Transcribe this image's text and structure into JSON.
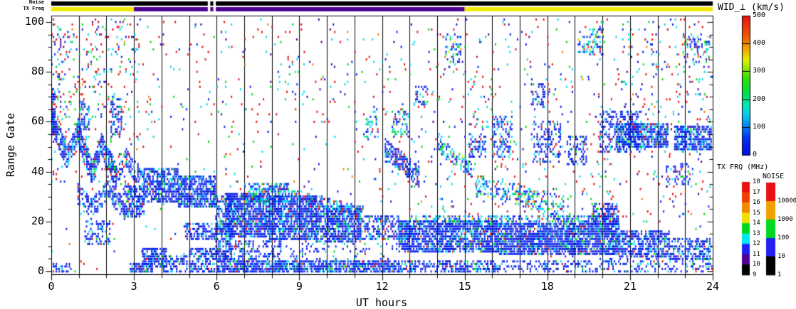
{
  "header": {
    "noise_bar_label": "Noise",
    "tx_freq_bar_label": "TX Freq",
    "bars": {
      "noise_color": "#000000",
      "tx_segments": [
        {
          "h0": 0,
          "h1": 3,
          "color": "#f0e800"
        },
        {
          "h0": 3,
          "h1": 15,
          "color": "#500090"
        },
        {
          "h0": 15,
          "h1": 24,
          "color": "#f0e800"
        }
      ],
      "gap": {
        "h0": 5.68,
        "h1": 5.97,
        "block_h0": 5.77,
        "block_h1": 5.88
      }
    }
  },
  "axes": {
    "x_label": "UT hours",
    "y_label": "Range Gate",
    "x_ticks": [
      0,
      3,
      6,
      9,
      12,
      15,
      18,
      21,
      24
    ],
    "y_ticks": [
      0,
      20,
      40,
      60,
      80,
      100
    ],
    "x_range": [
      0,
      24
    ],
    "y_range": [
      0,
      100
    ],
    "x_minor_every": 1,
    "y_minor_every": 5,
    "grid_every_hour": 1
  },
  "colorbars": {
    "wid": {
      "title": "WID_⊥ (km/s)",
      "tick_labels_top_to_bottom": [
        "500",
        "400",
        "300",
        "200",
        "100",
        "0"
      ],
      "min": 0,
      "max": 500,
      "gradient_bottom_to_top": [
        [
          0.0,
          "#0010e0"
        ],
        [
          0.12,
          "#0030f0"
        ],
        [
          0.2,
          "#0080f8"
        ],
        [
          0.28,
          "#00c8f0"
        ],
        [
          0.35,
          "#00e8c0"
        ],
        [
          0.45,
          "#00e040"
        ],
        [
          0.55,
          "#30e000"
        ],
        [
          0.62,
          "#90e800"
        ],
        [
          0.68,
          "#e0f000"
        ],
        [
          0.75,
          "#f0b000"
        ],
        [
          0.85,
          "#f05800"
        ],
        [
          1.0,
          "#e81010"
        ]
      ]
    },
    "tx": {
      "title": "TX FRQ (MHz)",
      "tick_labels_top_to_bottom": [
        "18",
        "17",
        "16",
        "15",
        "14",
        "13",
        "12",
        "11",
        "10",
        "9"
      ],
      "blocks_top_to_bottom": [
        "#e81010",
        "#f04000",
        "#f08800",
        "#f0e000",
        "#00d820",
        "#00e8f0",
        "#2020f0",
        "#500090",
        "#000000"
      ]
    },
    "noise": {
      "title": "NOISE",
      "tick_labels_top_to_bottom": [
        "10000",
        "1000",
        "100",
        "10",
        "1"
      ],
      "blocks_top_to_bottom": [
        "#e81010",
        "#f0a000",
        "#00d820",
        "#2020f0",
        "#000000"
      ]
    }
  },
  "chart_data": {
    "type": "heatmap",
    "title": "",
    "xlabel": "UT hours",
    "ylabel": "Range Gate",
    "xlim": [
      0,
      24
    ],
    "ylim": [
      0,
      100
    ],
    "value_scale": {
      "label": "WID_⊥ (km/s)",
      "min": 0,
      "max": 500
    },
    "seed": 42,
    "palettes": {
      "B": {
        "colors": [
          "#0820ee",
          "#0010b0",
          "#00d8f0",
          "#00d820",
          "#e81010"
        ],
        "weights": [
          0.72,
          0.1,
          0.12,
          0.04,
          0.02
        ]
      },
      "BC": {
        "colors": [
          "#0820ee",
          "#00d8f0",
          "#00d820",
          "#e81010",
          "#d8e800"
        ],
        "weights": [
          0.45,
          0.3,
          0.15,
          0.06,
          0.04
        ]
      },
      "N": {
        "colors": [
          "#e81010",
          "#00d8f0",
          "#0820ee",
          "#00d820",
          "#500090",
          "#f08000"
        ],
        "weights": [
          0.3,
          0.24,
          0.26,
          0.13,
          0.04,
          0.03
        ]
      }
    },
    "clusters": [
      {
        "t": "p",
        "h0": 0.0,
        "h1": 0.14,
        "g0": 55,
        "g1": 72,
        "d": 0.8,
        "p": "B"
      },
      {
        "t": "d",
        "h0": 0.0,
        "h1": 0.55,
        "gA": 61,
        "gB": 46,
        "w": 5,
        "d": 0.75,
        "p": "B"
      },
      {
        "t": "d",
        "h0": 0.55,
        "h1": 0.95,
        "gA": 46,
        "gB": 56,
        "w": 4,
        "d": 0.7,
        "p": "B"
      },
      {
        "t": "d",
        "h0": 0.95,
        "h1": 1.45,
        "gA": 56,
        "gB": 40,
        "w": 5,
        "d": 0.75,
        "p": "B"
      },
      {
        "t": "d",
        "h0": 1.45,
        "h1": 1.8,
        "gA": 40,
        "gB": 51,
        "w": 4,
        "d": 0.7,
        "p": "B"
      },
      {
        "t": "d",
        "h0": 1.8,
        "h1": 2.35,
        "gA": 51,
        "gB": 38,
        "w": 5,
        "d": 0.7,
        "p": "B"
      },
      {
        "t": "d",
        "h0": 2.35,
        "h1": 2.7,
        "gA": 38,
        "gB": 46,
        "w": 3,
        "d": 0.6,
        "p": "B"
      },
      {
        "t": "d",
        "h0": 2.7,
        "h1": 3.35,
        "gA": 45,
        "gB": 36,
        "w": 4,
        "d": 0.6,
        "p": "B"
      },
      {
        "t": "p",
        "h0": 1.02,
        "h1": 1.35,
        "g0": 57,
        "g1": 68,
        "d": 0.45,
        "p": "B"
      },
      {
        "t": "p",
        "h0": 2.15,
        "h1": 2.55,
        "g0": 55,
        "g1": 70,
        "d": 0.45,
        "p": "B"
      },
      {
        "t": "d",
        "h0": 0.95,
        "h1": 1.45,
        "gA": 31,
        "gB": 25,
        "w": 4,
        "d": 0.5,
        "p": "B"
      },
      {
        "t": "d",
        "h0": 1.45,
        "h1": 2.05,
        "gA": 25,
        "gB": 33,
        "w": 4,
        "d": 0.5,
        "p": "B"
      },
      {
        "t": "d",
        "h0": 2.05,
        "h1": 2.65,
        "gA": 33,
        "gB": 25,
        "w": 4,
        "d": 0.5,
        "p": "B"
      },
      {
        "t": "p",
        "h0": 1.2,
        "h1": 2.1,
        "g0": 11,
        "g1": 20,
        "d": 0.4,
        "p": "B"
      },
      {
        "t": "p",
        "h0": 2.6,
        "h1": 3.35,
        "g0": 22,
        "g1": 34,
        "d": 0.65,
        "p": "B"
      },
      {
        "t": "p",
        "h0": 3.35,
        "h1": 4.6,
        "g0": 28,
        "g1": 41,
        "d": 0.7,
        "p": "B"
      },
      {
        "t": "p",
        "h0": 4.6,
        "h1": 5.95,
        "g0": 26,
        "g1": 38,
        "d": 0.75,
        "p": "B"
      },
      {
        "t": "p",
        "h0": 4.8,
        "h1": 6.2,
        "g0": 13,
        "g1": 19,
        "d": 0.5,
        "p": "B"
      },
      {
        "t": "p",
        "h0": 3.3,
        "h1": 4.15,
        "g0": 2,
        "g1": 9,
        "d": 0.8,
        "p": "B"
      },
      {
        "t": "p",
        "h0": 2.85,
        "h1": 3.65,
        "g0": 0,
        "g1": 3,
        "d": 0.85,
        "p": "B"
      },
      {
        "t": "p",
        "h0": 4.0,
        "h1": 4.9,
        "g0": 0,
        "g1": 6,
        "d": 0.5,
        "p": "B"
      },
      {
        "t": "p",
        "h0": 5.0,
        "h1": 6.3,
        "g0": 0,
        "g1": 9,
        "d": 0.55,
        "p": "B"
      },
      {
        "t": "p",
        "h0": 0.0,
        "h1": 0.7,
        "g0": 0,
        "g1": 3,
        "d": 0.4,
        "p": "B"
      },
      {
        "t": "p",
        "h0": 5.95,
        "h1": 6.55,
        "g0": 5,
        "g1": 30,
        "d": 0.6,
        "p": "B"
      },
      {
        "t": "p",
        "h0": 6.3,
        "h1": 7.9,
        "g0": 14,
        "g1": 31,
        "d": 0.8,
        "p": "B"
      },
      {
        "t": "p",
        "h0": 7.0,
        "h1": 8.6,
        "g0": 28,
        "g1": 35,
        "d": 0.55,
        "p": "BC"
      },
      {
        "t": "p",
        "h0": 7.9,
        "h1": 9.6,
        "g0": 13,
        "g1": 30,
        "d": 0.8,
        "p": "B"
      },
      {
        "t": "p",
        "h0": 9.6,
        "h1": 11.2,
        "g0": 12,
        "g1": 26,
        "d": 0.75,
        "p": "B"
      },
      {
        "t": "p",
        "h0": 11.2,
        "h1": 12.6,
        "g0": 13,
        "g1": 22,
        "d": 0.55,
        "p": "B"
      },
      {
        "t": "d",
        "h0": 8.6,
        "h1": 11.3,
        "gA": 31,
        "gB": 24,
        "w": 2,
        "d": 0.5,
        "p": "BC"
      },
      {
        "t": "p",
        "h0": 6.0,
        "h1": 12.6,
        "g0": 0,
        "g1": 4,
        "d": 0.8,
        "p": "B"
      },
      {
        "t": "p",
        "h0": 6.3,
        "h1": 8.3,
        "g0": 5,
        "g1": 12,
        "d": 0.45,
        "p": "B"
      },
      {
        "t": "p",
        "h0": 8.3,
        "h1": 12.6,
        "g0": 5,
        "g1": 11,
        "d": 0.12,
        "p": "B"
      },
      {
        "t": "p",
        "h0": 12.6,
        "h1": 16.2,
        "g0": 8,
        "g1": 20,
        "d": 0.8,
        "p": "B"
      },
      {
        "t": "p",
        "h0": 16.2,
        "h1": 20.6,
        "g0": 7,
        "g1": 19,
        "d": 0.85,
        "p": "B"
      },
      {
        "t": "d",
        "h0": 13.0,
        "h1": 20.5,
        "gA": 21,
        "gB": 21,
        "w": 1.5,
        "d": 0.5,
        "p": "BC"
      },
      {
        "t": "p",
        "h0": 12.6,
        "h1": 16.2,
        "g0": 0,
        "g1": 4,
        "d": 0.55,
        "p": "B"
      },
      {
        "t": "p",
        "h0": 16.2,
        "h1": 20.2,
        "g0": 0,
        "g1": 4,
        "d": 0.3,
        "p": "B"
      },
      {
        "t": "p",
        "h0": 20.2,
        "h1": 24,
        "g0": 0,
        "g1": 5,
        "d": 0.25,
        "p": "B"
      },
      {
        "t": "p",
        "h0": 19.6,
        "h1": 20.6,
        "g0": 19,
        "g1": 27,
        "d": 0.6,
        "p": "B"
      },
      {
        "t": "p",
        "h0": 20.6,
        "h1": 22.4,
        "g0": 6,
        "g1": 16,
        "d": 0.7,
        "p": "B"
      },
      {
        "t": "p",
        "h0": 22.4,
        "h1": 24,
        "g0": 5,
        "g1": 13,
        "d": 0.5,
        "p": "B"
      },
      {
        "t": "d",
        "h0": 12.1,
        "h1": 13.35,
        "gA": 50,
        "gB": 38,
        "w": 4,
        "d": 0.7,
        "p": "B"
      },
      {
        "t": "d",
        "h0": 14.0,
        "h1": 15.25,
        "gA": 51,
        "gB": 41,
        "w": 3,
        "d": 0.45,
        "p": "BC"
      },
      {
        "t": "p",
        "h0": 12.35,
        "h1": 12.95,
        "g0": 55,
        "g1": 65,
        "d": 0.35,
        "p": "BC"
      },
      {
        "t": "p",
        "h0": 11.35,
        "h1": 11.85,
        "g0": 54,
        "g1": 64,
        "d": 0.3,
        "p": "BC"
      },
      {
        "t": "d",
        "h0": 15.4,
        "h1": 18.6,
        "gA": 35,
        "gB": 26,
        "w": 4,
        "d": 0.4,
        "p": "BC"
      },
      {
        "t": "p",
        "h0": 15.15,
        "h1": 15.75,
        "g0": 46,
        "g1": 55,
        "d": 0.4,
        "p": "B"
      },
      {
        "t": "p",
        "h0": 16.0,
        "h1": 16.7,
        "g0": 46,
        "g1": 62,
        "d": 0.35,
        "p": "B"
      },
      {
        "t": "p",
        "h0": 17.5,
        "h1": 18.5,
        "g0": 44,
        "g1": 60,
        "d": 0.35,
        "p": "B"
      },
      {
        "t": "p",
        "h0": 18.7,
        "h1": 19.4,
        "g0": 43,
        "g1": 54,
        "d": 0.35,
        "p": "B"
      },
      {
        "t": "p",
        "h0": 19.9,
        "h1": 21.4,
        "g0": 48,
        "g1": 64,
        "d": 0.45,
        "p": "B"
      },
      {
        "t": "p",
        "h0": 20.5,
        "h1": 22.35,
        "g0": 50,
        "g1": 59,
        "d": 0.75,
        "p": "B"
      },
      {
        "t": "p",
        "h0": 22.6,
        "h1": 24,
        "g0": 49,
        "g1": 58,
        "d": 0.75,
        "p": "B"
      },
      {
        "t": "p",
        "h0": 22.3,
        "h1": 23.3,
        "g0": 35,
        "g1": 43,
        "d": 0.3,
        "p": "B"
      },
      {
        "t": "p",
        "h0": 13.15,
        "h1": 13.65,
        "g0": 67,
        "g1": 74,
        "d": 0.35,
        "p": "B"
      },
      {
        "t": "p",
        "h0": 14.3,
        "h1": 14.85,
        "g0": 84,
        "g1": 95,
        "d": 0.35,
        "p": "BC"
      },
      {
        "t": "p",
        "h0": 19.1,
        "h1": 20.0,
        "g0": 87,
        "g1": 97,
        "d": 0.25,
        "p": "BC"
      },
      {
        "t": "p",
        "h0": 22.9,
        "h1": 23.9,
        "g0": 84,
        "g1": 94,
        "d": 0.25,
        "p": "BC"
      },
      {
        "t": "p",
        "h0": 17.4,
        "h1": 17.9,
        "g0": 66,
        "g1": 75,
        "d": 0.3,
        "p": "B"
      },
      {
        "t": "p",
        "h0": 0.0,
        "h1": 3.2,
        "g0": 62,
        "g1": 102,
        "d": 0.1,
        "p": "N"
      },
      {
        "t": "p",
        "h0": 0.0,
        "h1": 0.35,
        "g0": 35,
        "g1": 102,
        "d": 0.12,
        "p": "N"
      },
      {
        "t": "p",
        "h0": 3.2,
        "h1": 24,
        "g0": 60,
        "g1": 102,
        "d": 0.018,
        "p": "N"
      },
      {
        "t": "p",
        "h0": 0,
        "h1": 24,
        "g0": 0,
        "g1": 102,
        "d": 0.01,
        "p": "N"
      },
      {
        "t": "p",
        "h0": 12.3,
        "h1": 24,
        "g0": 22,
        "g1": 60,
        "d": 0.03,
        "p": "N"
      },
      {
        "t": "p",
        "h0": 6.0,
        "h1": 12.3,
        "g0": 32,
        "g1": 60,
        "d": 0.012,
        "p": "N"
      },
      {
        "t": "p",
        "h0": 15.0,
        "h1": 16.0,
        "g0": 58,
        "g1": 78,
        "d": 0.04,
        "p": "N"
      },
      {
        "t": "p",
        "h0": 20.5,
        "h1": 24,
        "g0": 60,
        "g1": 102,
        "d": 0.035,
        "p": "N"
      },
      {
        "t": "p",
        "h0": 0.4,
        "h1": 3.2,
        "g0": 35,
        "g1": 62,
        "d": 0.05,
        "p": "N"
      }
    ]
  }
}
